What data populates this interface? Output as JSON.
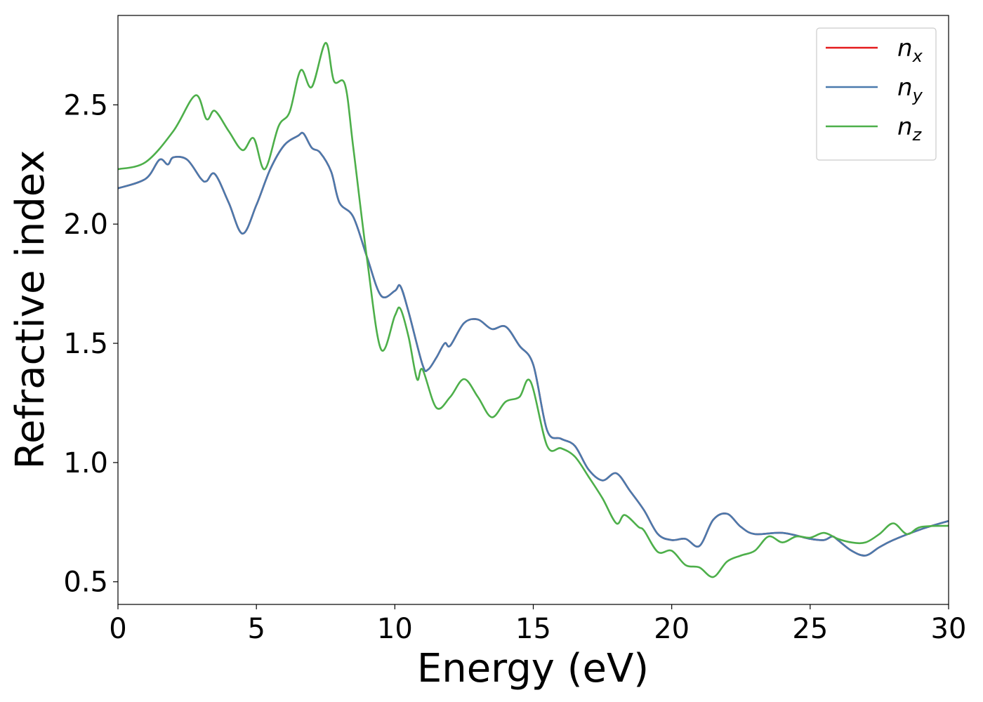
{
  "chart_data": {
    "type": "line",
    "xlabel": "Energy (eV)",
    "ylabel": "Refractive index",
    "xlim": [
      0,
      30
    ],
    "xticks": [
      0,
      5,
      10,
      15,
      20,
      25,
      30
    ],
    "ylim": [
      0.405,
      2.875
    ],
    "yticks": [
      {
        "value": 0.5,
        "label": "0.5"
      },
      {
        "value": 1.0,
        "label": "1.0"
      },
      {
        "value": 1.5,
        "label": "1.5"
      },
      {
        "value": 2.0,
        "label": "2.0"
      },
      {
        "value": 2.5,
        "label": "2.5"
      }
    ],
    "legend": "upper right",
    "series": [
      {
        "name": "nx",
        "color": "#e41a1c",
        "x": [
          0,
          1,
          1.5,
          1.8,
          2,
          2.5,
          3,
          3.2,
          3.5,
          4,
          4.5,
          5,
          5.5,
          6,
          6.5,
          6.7,
          7,
          7.3,
          7.7,
          8,
          8.5,
          9,
          9.5,
          10,
          10.2,
          10.5,
          11,
          11.2,
          11.5,
          11.8,
          12,
          12.5,
          13,
          13.5,
          14,
          14.5,
          15,
          15.5,
          16,
          16.5,
          17,
          17.5,
          18,
          18.5,
          19,
          19.5,
          20,
          20.5,
          21,
          21.5,
          22,
          22.5,
          23,
          24,
          25,
          25.5,
          25.8,
          26,
          26.5,
          27,
          27.5,
          28,
          29,
          30
        ],
        "values": [
          2.15,
          2.19,
          2.27,
          2.25,
          2.28,
          2.27,
          2.19,
          2.18,
          2.21,
          2.09,
          1.96,
          2.08,
          2.23,
          2.33,
          2.37,
          2.38,
          2.32,
          2.3,
          2.22,
          2.09,
          2.03,
          1.86,
          1.7,
          1.72,
          1.74,
          1.63,
          1.41,
          1.39,
          1.44,
          1.5,
          1.49,
          1.585,
          1.6,
          1.56,
          1.57,
          1.49,
          1.41,
          1.135,
          1.1,
          1.07,
          0.97,
          0.925,
          0.955,
          0.88,
          0.8,
          0.7,
          0.675,
          0.68,
          0.65,
          0.76,
          0.785,
          0.73,
          0.7,
          0.705,
          0.68,
          0.675,
          0.69,
          0.675,
          0.63,
          0.61,
          0.645,
          0.675,
          0.72,
          0.755
        ]
      },
      {
        "name": "ny",
        "color": "#4a7aad",
        "x": [
          0,
          1,
          1.5,
          1.8,
          2,
          2.5,
          3,
          3.2,
          3.5,
          4,
          4.5,
          5,
          5.5,
          6,
          6.5,
          6.7,
          7,
          7.3,
          7.7,
          8,
          8.5,
          9,
          9.5,
          10,
          10.2,
          10.5,
          11,
          11.2,
          11.5,
          11.8,
          12,
          12.5,
          13,
          13.5,
          14,
          14.5,
          15,
          15.5,
          16,
          16.5,
          17,
          17.5,
          18,
          18.5,
          19,
          19.5,
          20,
          20.5,
          21,
          21.5,
          22,
          22.5,
          23,
          24,
          25,
          25.5,
          25.8,
          26,
          26.5,
          27,
          27.5,
          28,
          29,
          30
        ],
        "values": [
          2.15,
          2.19,
          2.27,
          2.25,
          2.28,
          2.27,
          2.19,
          2.18,
          2.21,
          2.09,
          1.96,
          2.08,
          2.23,
          2.33,
          2.37,
          2.38,
          2.32,
          2.3,
          2.22,
          2.09,
          2.03,
          1.86,
          1.7,
          1.72,
          1.74,
          1.63,
          1.41,
          1.39,
          1.44,
          1.5,
          1.49,
          1.585,
          1.6,
          1.56,
          1.57,
          1.49,
          1.41,
          1.135,
          1.1,
          1.07,
          0.97,
          0.925,
          0.955,
          0.88,
          0.8,
          0.7,
          0.675,
          0.68,
          0.65,
          0.76,
          0.785,
          0.73,
          0.7,
          0.705,
          0.68,
          0.675,
          0.69,
          0.675,
          0.63,
          0.61,
          0.645,
          0.675,
          0.72,
          0.755
        ]
      },
      {
        "name": "nz",
        "color": "#4daf4a",
        "x": [
          0,
          1,
          2,
          2.8,
          3.2,
          3.5,
          4,
          4.5,
          4.9,
          5.3,
          5.8,
          6.2,
          6.6,
          7,
          7.5,
          7.8,
          8.2,
          8.5,
          9,
          9.5,
          10,
          10.2,
          10.5,
          10.8,
          11,
          11.5,
          12,
          12.5,
          13,
          13.5,
          14,
          14.5,
          14.9,
          15.5,
          16,
          16.5,
          17,
          17.5,
          18,
          18.3,
          18.8,
          19,
          19.5,
          20,
          20.5,
          21,
          21.5,
          22,
          22.5,
          23,
          23.5,
          24,
          24.5,
          25,
          25.5,
          26,
          26.5,
          27,
          27.5,
          28,
          28.5,
          29,
          30
        ],
        "values": [
          2.23,
          2.26,
          2.39,
          2.54,
          2.44,
          2.475,
          2.39,
          2.31,
          2.36,
          2.23,
          2.41,
          2.47,
          2.645,
          2.575,
          2.76,
          2.6,
          2.585,
          2.32,
          1.85,
          1.475,
          1.615,
          1.645,
          1.525,
          1.35,
          1.39,
          1.23,
          1.275,
          1.35,
          1.275,
          1.19,
          1.255,
          1.275,
          1.34,
          1.07,
          1.06,
          1.025,
          0.94,
          0.85,
          0.745,
          0.78,
          0.73,
          0.715,
          0.625,
          0.63,
          0.57,
          0.56,
          0.52,
          0.585,
          0.61,
          0.63,
          0.69,
          0.665,
          0.69,
          0.685,
          0.705,
          0.68,
          0.665,
          0.665,
          0.7,
          0.745,
          0.7,
          0.73,
          0.735
        ]
      }
    ]
  }
}
